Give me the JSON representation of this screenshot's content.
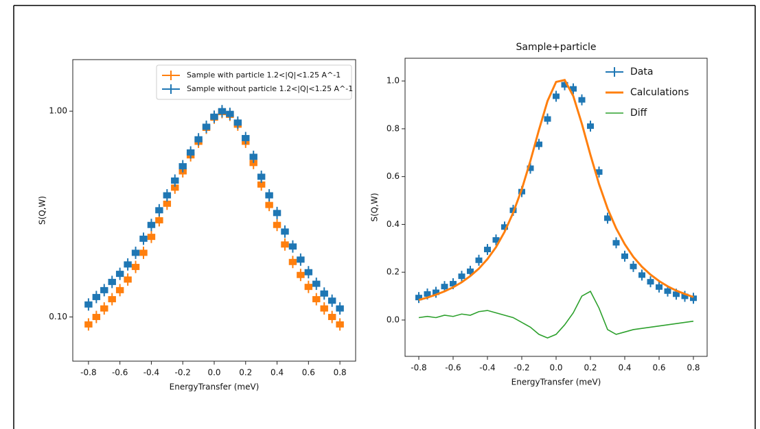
{
  "chart_data": [
    {
      "type": "line",
      "yscale": "log",
      "ylabel": "S(Q,W)",
      "xlabel": "EnergyTransfer (meV)",
      "x": [
        -0.8,
        -0.75,
        -0.7,
        -0.65,
        -0.6,
        -0.55,
        -0.5,
        -0.45,
        -0.4,
        -0.35,
        -0.3,
        -0.25,
        -0.2,
        -0.15,
        -0.1,
        -0.05,
        0,
        0.05,
        0.1,
        0.15,
        0.2,
        0.25,
        0.3,
        0.35,
        0.4,
        0.45,
        0.5,
        0.55,
        0.6,
        0.65,
        0.7,
        0.75,
        0.8
      ],
      "series": [
        {
          "name": "Sample with particle 1.2<|Q|<1.25 A^-1",
          "color": "#ff7f0e",
          "style": "step",
          "values": [
            0.092,
            0.1,
            0.11,
            0.122,
            0.135,
            0.152,
            0.175,
            0.205,
            0.245,
            0.295,
            0.355,
            0.425,
            0.51,
            0.61,
            0.71,
            0.83,
            0.93,
            0.99,
            0.96,
            0.86,
            0.71,
            0.56,
            0.44,
            0.35,
            0.28,
            0.225,
            0.185,
            0.16,
            0.14,
            0.122,
            0.11,
            0.1,
            0.092
          ]
        },
        {
          "name": "Sample without particle 1.2<|Q|<1.25 A^-1",
          "color": "#1f77b4",
          "style": "step",
          "values": [
            0.115,
            0.125,
            0.135,
            0.148,
            0.162,
            0.18,
            0.205,
            0.24,
            0.28,
            0.33,
            0.39,
            0.46,
            0.54,
            0.63,
            0.73,
            0.84,
            0.94,
            1.0,
            0.97,
            0.88,
            0.74,
            0.6,
            0.48,
            0.39,
            0.32,
            0.26,
            0.22,
            0.19,
            0.165,
            0.145,
            0.13,
            0.12,
            0.11
          ]
        }
      ],
      "xlim": [
        -0.9,
        0.9
      ],
      "ylim": [
        0.061,
        1.78
      ],
      "xticks": [
        -0.8,
        -0.6,
        -0.4,
        -0.2,
        {
          "value": 0,
          "label": "0.0"
        },
        0.2,
        0.4,
        0.6,
        0.8
      ],
      "yticks": [
        {
          "value": 0.1,
          "label": "0.10"
        },
        {
          "value": 1,
          "label": "1.00"
        }
      ],
      "legend": "upper right",
      "legend_frame": true
    },
    {
      "type": "line",
      "title": "Sample+particle",
      "ylabel": "S(Q,W)",
      "xlabel": "EnergyTransfer (meV)",
      "x": [
        -0.8,
        -0.75,
        -0.7,
        -0.65,
        -0.6,
        -0.55,
        -0.5,
        -0.45,
        -0.4,
        -0.35,
        -0.3,
        -0.25,
        -0.2,
        -0.15,
        -0.1,
        -0.05,
        0,
        0.05,
        0.1,
        0.15,
        0.2,
        0.25,
        0.3,
        0.35,
        0.4,
        0.45,
        0.5,
        0.55,
        0.6,
        0.65,
        0.7,
        0.75,
        0.8
      ],
      "series": [
        {
          "name": "Data",
          "color": "#1f77b4",
          "style": "points",
          "values": [
            0.094,
            0.109,
            0.116,
            0.14,
            0.152,
            0.183,
            0.204,
            0.25,
            0.295,
            0.335,
            0.389,
            0.459,
            0.537,
            0.635,
            0.735,
            0.841,
            0.936,
            0.984,
            0.967,
            0.921,
            0.811,
            0.619,
            0.426,
            0.323,
            0.267,
            0.224,
            0.188,
            0.16,
            0.138,
            0.121,
            0.108,
            0.099,
            0.091
          ]
        },
        {
          "name": "Calculations",
          "color": "#ff7f0e",
          "style": "line",
          "values": [
            0.084,
            0.094,
            0.106,
            0.12,
            0.137,
            0.158,
            0.184,
            0.215,
            0.255,
            0.305,
            0.369,
            0.449,
            0.547,
            0.665,
            0.795,
            0.916,
            0.996,
            1.004,
            0.937,
            0.821,
            0.691,
            0.569,
            0.466,
            0.383,
            0.317,
            0.264,
            0.223,
            0.19,
            0.163,
            0.141,
            0.123,
            0.109,
            0.096
          ]
        },
        {
          "name": "Diff",
          "color": "#2ca02c",
          "style": "thin",
          "values": [
            0.01,
            0.015,
            0.01,
            0.02,
            0.015,
            0.025,
            0.02,
            0.035,
            0.04,
            0.03,
            0.02,
            0.01,
            -0.01,
            -0.03,
            -0.06,
            -0.075,
            -0.06,
            -0.02,
            0.03,
            0.1,
            0.12,
            0.05,
            -0.04,
            -0.06,
            -0.05,
            -0.04,
            -0.035,
            -0.03,
            -0.025,
            -0.02,
            -0.015,
            -0.01,
            -0.005
          ]
        }
      ],
      "xlim": [
        -0.88,
        0.88
      ],
      "ylim": [
        -0.152,
        1.095
      ],
      "xticks": [
        -0.8,
        -0.6,
        -0.4,
        -0.2,
        {
          "value": 0,
          "label": "0.0"
        },
        0.2,
        0.4,
        0.6,
        0.8
      ],
      "yticks": [
        {
          "value": 0,
          "label": "0.0"
        },
        0.2,
        0.4,
        0.6,
        0.8,
        {
          "value": 1,
          "label": "1.0"
        }
      ],
      "legend": "upper right",
      "legend_frame": false
    }
  ]
}
